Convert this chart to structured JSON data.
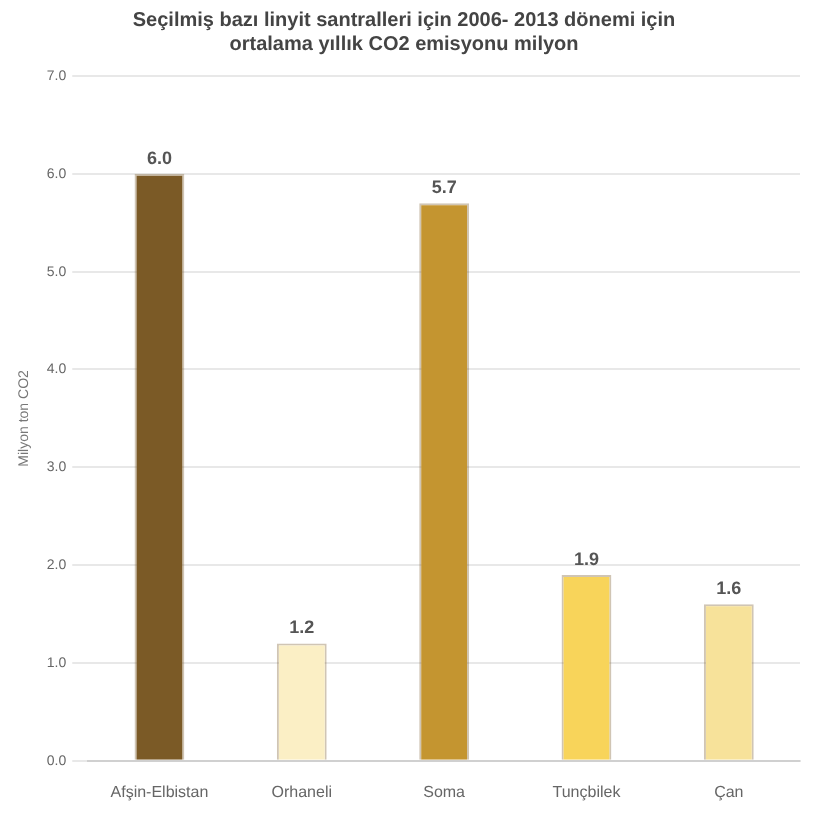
{
  "chart_data": {
    "type": "bar",
    "title": [
      "Seçilmiş bazı linyit santralleri için 2006- 2013 dönemi için",
      "ortalama yıllık CO2 emisyonu milyon"
    ],
    "ylabel": "Milyon ton CO2",
    "categories": [
      "Afşin-Elbistan",
      "Orhaneli",
      "Soma",
      "Tunçbilek",
      "Çan"
    ],
    "values": [
      6.0,
      1.2,
      5.7,
      1.9,
      1.6
    ],
    "colors": [
      "#7b5a26",
      "#fbefc5",
      "#c49530",
      "#f8d45a",
      "#f7e29a"
    ],
    "ylim": [
      0,
      7
    ],
    "yticks": [
      {
        "value": 0,
        "label": "0.0"
      },
      {
        "value": 1,
        "label": "1.0"
      },
      {
        "value": 2,
        "label": "2.0"
      },
      {
        "value": 3,
        "label": "3.0"
      },
      {
        "value": 4,
        "label": "4.0"
      },
      {
        "value": 5,
        "label": "5.0"
      },
      {
        "value": 6,
        "label": "6.0"
      },
      {
        "value": 7,
        "label": "7.0"
      }
    ],
    "value_labels": [
      "6.0",
      "1.2",
      "5.7",
      "1.9",
      "1.6"
    ],
    "grid": "y"
  }
}
